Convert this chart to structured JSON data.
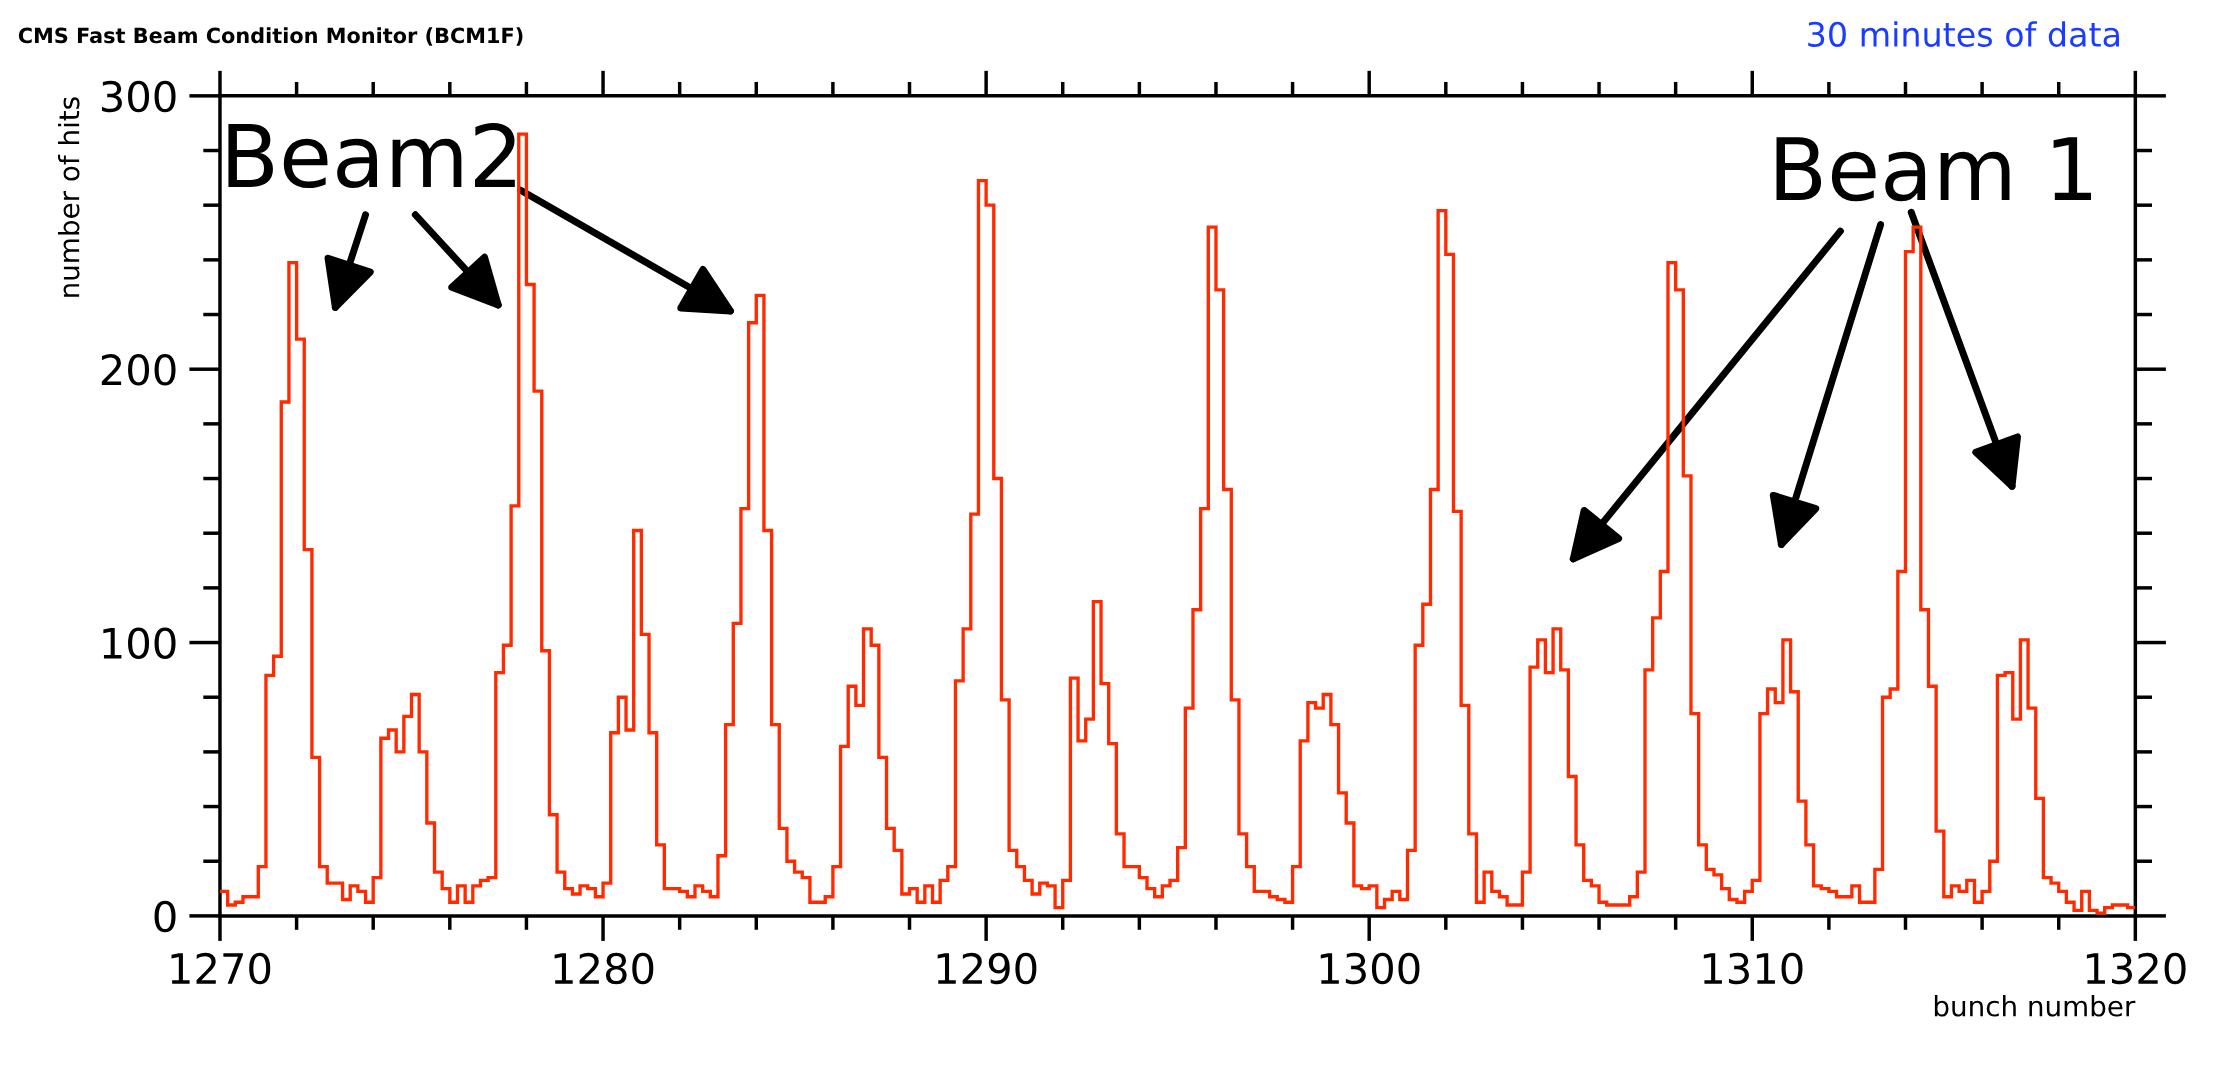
{
  "chart_data": {
    "type": "histogram",
    "title": "CMS Fast Beam Condition Monitor (BCM1F)",
    "subtitle": "30 minutes of data",
    "xlabel": "bunch number",
    "ylabel": "number of hits",
    "annotations": [
      "Beam2",
      "Beam 1"
    ],
    "color": "#ff2a00",
    "bins": [
      1270,
      1270.2,
      1270.4,
      1270.6,
      1270.8,
      1271,
      1271.2,
      1271.4,
      1271.6,
      1271.8,
      1272,
      1272.2,
      1272.4,
      1272.6,
      1272.8,
      1273,
      1273.2,
      1273.4,
      1273.6,
      1273.8,
      1274,
      1274.2,
      1274.4,
      1274.6,
      1274.8,
      1275,
      1275.2,
      1275.4,
      1275.6,
      1275.8,
      1276,
      1276.2,
      1276.4,
      1276.6,
      1276.8,
      1277,
      1277.2,
      1277.4,
      1277.6,
      1277.8,
      1278,
      1278.2,
      1278.4,
      1278.6,
      1278.8,
      1279,
      1279.2,
      1279.4,
      1279.6,
      1279.8,
      1280,
      1280.2,
      1280.4,
      1280.6,
      1280.8,
      1281,
      1281.2,
      1281.4,
      1281.6,
      1281.8,
      1282,
      1282.2,
      1282.4,
      1282.6,
      1282.8,
      1283,
      1283.2,
      1283.4,
      1283.6,
      1283.8,
      1284,
      1284.2,
      1284.4,
      1284.6,
      1284.8,
      1285,
      1285.2,
      1285.4,
      1285.6,
      1285.8,
      1286,
      1286.2,
      1286.4,
      1286.6,
      1286.8,
      1287,
      1287.2,
      1287.4,
      1287.6,
      1287.8,
      1288,
      1288.2,
      1288.4,
      1288.6,
      1288.8,
      1289,
      1289.2,
      1289.4,
      1289.6,
      1289.8,
      1290,
      1290.2,
      1290.4,
      1290.6,
      1290.8,
      1291,
      1291.2,
      1291.4,
      1291.6,
      1291.8,
      1292,
      1292.2,
      1292.4,
      1292.6,
      1292.8,
      1293,
      1293.2,
      1293.4,
      1293.6,
      1293.8,
      1294,
      1294.2,
      1294.4,
      1294.6,
      1294.8,
      1295,
      1295.2,
      1295.4,
      1295.6,
      1295.8,
      1296,
      1296.2,
      1296.4,
      1296.6,
      1296.8,
      1297,
      1297.2,
      1297.4,
      1297.6,
      1297.8,
      1298,
      1298.2,
      1298.4,
      1298.6,
      1298.8,
      1299,
      1299.2,
      1299.4,
      1299.6,
      1299.8,
      1300,
      1300.2,
      1300.4,
      1300.6,
      1300.8,
      1301,
      1301.2,
      1301.4,
      1301.6,
      1301.8,
      1302,
      1302.2,
      1302.4,
      1302.6,
      1302.8,
      1303,
      1303.2,
      1303.4,
      1303.6,
      1303.8,
      1304,
      1304.2,
      1304.4,
      1304.6,
      1304.8,
      1305,
      1305.2,
      1305.4,
      1305.6,
      1305.8,
      1306,
      1306.2,
      1306.4,
      1306.6,
      1306.8,
      1307,
      1307.2,
      1307.4,
      1307.6,
      1307.8,
      1308,
      1308.2,
      1308.4,
      1308.6,
      1308.8,
      1309,
      1309.2,
      1309.4,
      1309.6,
      1309.8,
      1310,
      1310.2,
      1310.4,
      1310.6,
      1310.8,
      1311,
      1311.2,
      1311.4,
      1311.6,
      1311.8,
      1312,
      1312.2,
      1312.4,
      1312.6,
      1312.8,
      1313,
      1313.2,
      1313.4,
      1313.6,
      1313.8,
      1314,
      1314.2,
      1314.4,
      1314.6,
      1314.8,
      1315,
      1315.2,
      1315.4,
      1315.6,
      1315.8,
      1316,
      1316.2,
      1316.4,
      1316.6,
      1316.8,
      1317,
      1317.2,
      1317.4,
      1317.6,
      1317.8,
      1318,
      1318.2,
      1318.4,
      1318.6,
      1318.8,
      1319,
      1319.2,
      1319.4,
      1319.6,
      1319.8,
      1320
    ],
    "values": [
      9,
      4,
      5,
      7,
      7,
      18,
      88,
      95,
      188,
      239,
      211,
      134,
      58,
      18,
      12,
      12,
      6,
      11,
      9,
      5,
      14,
      65,
      68,
      60,
      73,
      81,
      60,
      34,
      16,
      10,
      5,
      11,
      5,
      11,
      13,
      14,
      89,
      99,
      150,
      286,
      231,
      192,
      97,
      37,
      16,
      10,
      8,
      11,
      10,
      7,
      12,
      67,
      80,
      68,
      141,
      103,
      67,
      26,
      10,
      10,
      9,
      7,
      11,
      9,
      7,
      22,
      70,
      107,
      149,
      217,
      227,
      141,
      70,
      32,
      20,
      16,
      14,
      5,
      5,
      7,
      18,
      62,
      84,
      77,
      105,
      99,
      58,
      32,
      24,
      8,
      10,
      5,
      11,
      5,
      13,
      18,
      86,
      105,
      147,
      269,
      260,
      160,
      79,
      24,
      18,
      13,
      8,
      12,
      11,
      3,
      13,
      87,
      64,
      72,
      115,
      85,
      63,
      30,
      18,
      18,
      14,
      10,
      7,
      11,
      13,
      25,
      76,
      112,
      149,
      252,
      229,
      156,
      79,
      30,
      18,
      9,
      9,
      7,
      6,
      5,
      18,
      64,
      78,
      76,
      81,
      70,
      45,
      34,
      11,
      10,
      11,
      3,
      6,
      9,
      6,
      24,
      99,
      114,
      156,
      258,
      242,
      148,
      77,
      30,
      5,
      16,
      9,
      7,
      4,
      4,
      16,
      91,
      101,
      89,
      105,
      90,
      51,
      26,
      13,
      11,
      5,
      4,
      4,
      4,
      7,
      16,
      90,
      109,
      126,
      239,
      229,
      161,
      74,
      26,
      17,
      15,
      10,
      6,
      5,
      9,
      13,
      74,
      83,
      78,
      101,
      82,
      42,
      26,
      11,
      10,
      9,
      7,
      7,
      11,
      5,
      5,
      17,
      80,
      83,
      126,
      243,
      252,
      112,
      84,
      31,
      7,
      11,
      9,
      13,
      5,
      9,
      20,
      88,
      89,
      72,
      101,
      76,
      43,
      14,
      12,
      9,
      5,
      2,
      9,
      2,
      1,
      3,
      4,
      4,
      3
    ],
    "xlim": [
      1270,
      1320
    ],
    "xticks": [
      1270,
      1280,
      1290,
      1300,
      1310,
      1320
    ],
    "ylim": [
      0,
      300
    ],
    "yticks": [
      0,
      100,
      200,
      300
    ],
    "grid": false,
    "legend": false
  }
}
